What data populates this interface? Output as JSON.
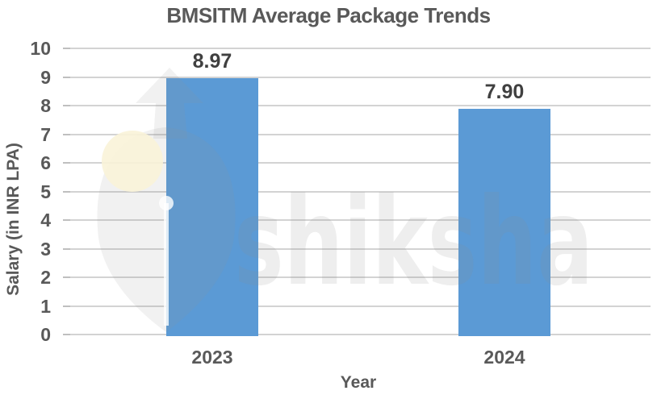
{
  "chart_data": {
    "type": "bar",
    "title": "BMSITM Average Package Trends",
    "xlabel": "Year",
    "ylabel": "Salary (in INR LPA)",
    "categories": [
      "2023",
      "2024"
    ],
    "values": [
      8.97,
      7.9
    ],
    "value_labels": [
      "8.97",
      "7.90"
    ],
    "ylim": [
      0,
      10
    ],
    "yticks": [
      "0",
      "1",
      "2",
      "3",
      "4",
      "5",
      "6",
      "7",
      "8",
      "9",
      "10"
    ],
    "grid": "horizontal",
    "legend": "none"
  },
  "watermark": {
    "text": "shiksha",
    "logo": "pen-nib-logo"
  },
  "colors": {
    "bar": "#5B9AD5",
    "label": "#404040",
    "axis_text": "#595959",
    "grid": "#d3d3d3",
    "tick": "#bfbfbf",
    "background": "#ffffff",
    "watermark": "#8f8f8f",
    "watermark_cream": "#FAF3D8"
  }
}
